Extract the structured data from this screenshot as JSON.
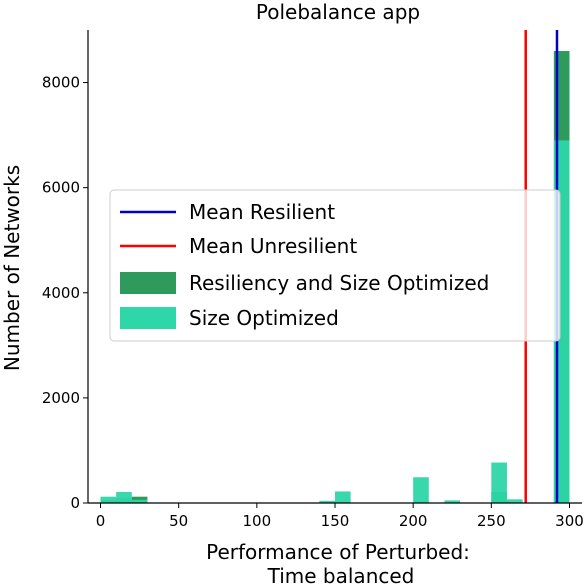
{
  "chart_data": {
    "type": "bar",
    "title": "Polebalance app",
    "xlabel": [
      "Performance of Perturbed:",
      "Time balanced"
    ],
    "ylabel": "Number of Networks",
    "xlim": [
      -8,
      308
    ],
    "ylim": [
      0,
      9000
    ],
    "xticks": [
      0,
      50,
      100,
      150,
      200,
      250,
      300
    ],
    "yticks": [
      0,
      2000,
      4000,
      6000,
      8000
    ],
    "grid": false,
    "legend_position": "center-left",
    "bin_width": 10,
    "series": [
      {
        "name": "Resiliency and Size Optimized",
        "color": "#2e9a5c",
        "bins": [
          {
            "x": 0,
            "value": 60
          },
          {
            "x": 10,
            "value": 90
          },
          {
            "x": 20,
            "value": 120
          },
          {
            "x": 250,
            "value": 210
          },
          {
            "x": 290,
            "value": 8600
          }
        ]
      },
      {
        "name": "Size Optimized",
        "color": "#2ed6a8",
        "bins": [
          {
            "x": 0,
            "value": 120
          },
          {
            "x": 10,
            "value": 210
          },
          {
            "x": 20,
            "value": 60
          },
          {
            "x": 140,
            "value": 40
          },
          {
            "x": 150,
            "value": 220
          },
          {
            "x": 200,
            "value": 490
          },
          {
            "x": 220,
            "value": 50
          },
          {
            "x": 250,
            "value": 770
          },
          {
            "x": 260,
            "value": 70
          },
          {
            "x": 290,
            "value": 6900
          }
        ]
      }
    ],
    "vlines": [
      {
        "name": "Mean Resilient",
        "x": 292,
        "color": "#0000cc"
      },
      {
        "name": "Mean Unresilient",
        "x": 272,
        "color": "#ff0000"
      }
    ],
    "legend": [
      {
        "label": "Mean Resilient",
        "kind": "line",
        "color": "#0000cc"
      },
      {
        "label": "Mean Unresilient",
        "kind": "line",
        "color": "#ff0000"
      },
      {
        "label": "Resiliency and Size Optimized",
        "kind": "patch",
        "color": "#2e9a5c"
      },
      {
        "label": "Size Optimized",
        "kind": "patch",
        "color": "#2ed6a8"
      }
    ]
  }
}
